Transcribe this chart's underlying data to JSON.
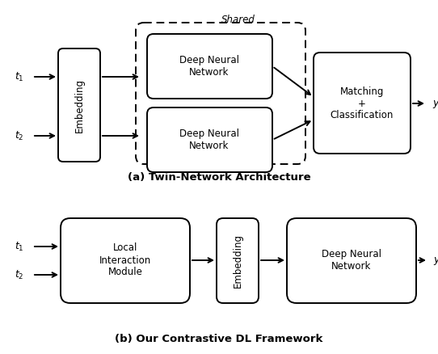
{
  "bg_color": "#ffffff",
  "title_a": "(a) Twin-Network Architecture",
  "title_b": "(b) Our Contrastive DL Framework",
  "shared_label": "Shared",
  "fig_width": 5.42,
  "fig_height": 4.38,
  "dpi": 100
}
